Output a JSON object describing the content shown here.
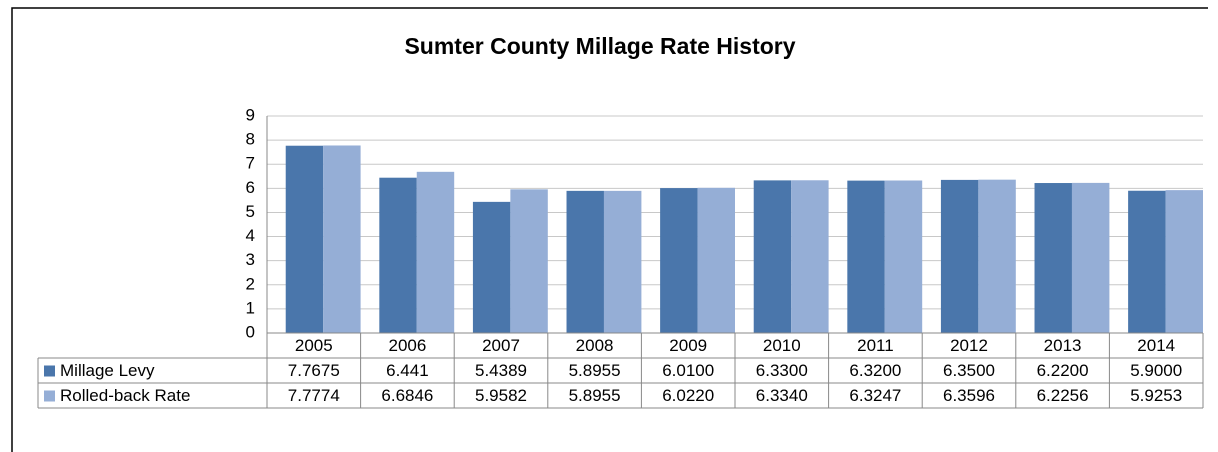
{
  "chart_data": {
    "type": "bar",
    "title": "Sumter County Millage Rate History",
    "categories": [
      "2005",
      "2006",
      "2007",
      "2008",
      "2009",
      "2010",
      "2011",
      "2012",
      "2013",
      "2014"
    ],
    "series": [
      {
        "name": "Millage Levy",
        "color": "#4a76ab",
        "values": [
          7.7675,
          6.441,
          5.4389,
          5.8955,
          6.01,
          6.33,
          6.32,
          6.35,
          6.22,
          5.9
        ],
        "value_labels": [
          "7.7675",
          "6.441",
          "5.4389",
          "5.8955",
          "6.0100",
          "6.3300",
          "6.3200",
          "6.3500",
          "6.2200",
          "5.9000"
        ]
      },
      {
        "name": "Rolled-back Rate",
        "color": "#95aed6",
        "values": [
          7.7774,
          6.6846,
          5.9582,
          5.8955,
          6.022,
          6.334,
          6.3247,
          6.3596,
          6.2256,
          5.9253
        ],
        "value_labels": [
          "7.7774",
          "6.6846",
          "5.9582",
          "5.8955",
          "6.0220",
          "6.3340",
          "6.3247",
          "6.3596",
          "6.2256",
          "5.9253"
        ]
      }
    ],
    "ylim": [
      0,
      9
    ],
    "yticks": [
      0,
      1,
      2,
      3,
      4,
      5,
      6,
      7,
      8,
      9
    ],
    "grid": true
  }
}
